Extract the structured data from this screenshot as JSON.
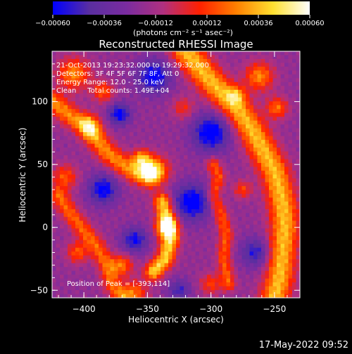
{
  "chart_data": {
    "type": "heatmap",
    "title": "Reconstructed RHESSI Image",
    "xlabel": "Heliocentric X (arcsec)",
    "ylabel": "Heliocentric Y (arcsec)",
    "xlim": [
      -425,
      -230
    ],
    "ylim": [
      -56,
      140
    ],
    "xticks": [
      {
        "value": -400,
        "label": "−400"
      },
      {
        "value": -350,
        "label": "−350"
      },
      {
        "value": -300,
        "label": "−300"
      },
      {
        "value": -250,
        "label": "−250"
      }
    ],
    "yticks": [
      {
        "value": -50,
        "label": "−50"
      },
      {
        "value": 0,
        "label": "0"
      },
      {
        "value": 50,
        "label": "50"
      },
      {
        "value": 100,
        "label": "100"
      }
    ],
    "colorbar": {
      "range": [
        -0.0006,
        0.0006
      ],
      "ticks": [
        {
          "value": -0.0006,
          "label": "−0.00060"
        },
        {
          "value": -0.00036,
          "label": "−0.00036"
        },
        {
          "value": -0.00012,
          "label": "−0.00012"
        },
        {
          "value": 0.00012,
          "label": "0.00012"
        },
        {
          "value": 0.00036,
          "label": "0.00036"
        },
        {
          "value": 0.0006,
          "label": "0.00060"
        }
      ],
      "unit_label": "(photons cm⁻² s⁻¹ asec⁻²)",
      "colors": [
        "#0000ff",
        "#5a2ea0",
        "#7a2ca0",
        "#b03080",
        "#ff2000",
        "#ff8000",
        "#ffe030",
        "#ffffff"
      ]
    },
    "peak": [
      -393,
      114
    ],
    "ridges": [
      {
        "points": [
          [
            -320,
            140
          ],
          [
            -305,
            122
          ],
          [
            -296,
            112
          ],
          [
            -280,
            95
          ],
          [
            -268,
            78
          ],
          [
            -258,
            60
          ],
          [
            -250,
            45
          ],
          [
            -246,
            30
          ],
          [
            -243,
            15
          ],
          [
            -242,
            0
          ],
          [
            -244,
            -20
          ],
          [
            -246,
            -40
          ],
          [
            -250,
            -56
          ]
        ],
        "amplitude": 0.00055,
        "width": 8
      },
      {
        "points": [
          [
            -425,
            100
          ],
          [
            -410,
            88
          ],
          [
            -400,
            82
          ],
          [
            -390,
            70
          ],
          [
            -382,
            60
          ],
          [
            -370,
            50
          ],
          [
            -360,
            44
          ],
          [
            -350,
            42
          ]
        ],
        "amplitude": 0.00045,
        "width": 6
      },
      {
        "points": [
          [
            -338,
            20
          ],
          [
            -334,
            5
          ],
          [
            -332,
            -10
          ],
          [
            -336,
            -25
          ],
          [
            -345,
            -35
          ]
        ],
        "amplitude": 0.0006,
        "width": 5
      },
      {
        "points": [
          [
            -420,
            25
          ],
          [
            -410,
            10
          ],
          [
            -402,
            0
          ],
          [
            -390,
            -15
          ],
          [
            -382,
            -30
          ],
          [
            -378,
            -45
          ],
          [
            -370,
            -56
          ]
        ],
        "amplitude": 0.00038,
        "width": 5
      },
      {
        "points": [
          [
            -298,
            50
          ],
          [
            -294,
            40
          ],
          [
            -298,
            25
          ],
          [
            -292,
            10
          ],
          [
            -288,
            -5
          ],
          [
            -290,
            -25
          ],
          [
            -286,
            -45
          ]
        ],
        "amplitude": 0.00035,
        "width": 4
      }
    ],
    "blobs": [
      {
        "center": [
          -345,
          45
        ],
        "sigma": 8,
        "amplitude": 0.0006
      },
      {
        "center": [
          -355,
          55
        ],
        "sigma": 5,
        "amplitude": 0.00045
      },
      {
        "center": [
          -335,
          0
        ],
        "sigma": 6,
        "amplitude": 0.0005
      },
      {
        "center": [
          -408,
          122
        ],
        "sigma": 9,
        "amplitude": 0.00045
      },
      {
        "center": [
          -385,
          108
        ],
        "sigma": 6,
        "amplitude": 0.00035
      },
      {
        "center": [
          -395,
          80
        ],
        "sigma": 6,
        "amplitude": 0.0004
      },
      {
        "center": [
          -262,
          120
        ],
        "sigma": 8,
        "amplitude": 0.00045
      },
      {
        "center": [
          -248,
          95
        ],
        "sigma": 6,
        "amplitude": 0.0004
      },
      {
        "center": [
          -280,
          105
        ],
        "sigma": 5,
        "amplitude": 0.0003
      },
      {
        "center": [
          -415,
          40
        ],
        "sigma": 7,
        "amplitude": 0.00035
      },
      {
        "center": [
          -405,
          -20
        ],
        "sigma": 6,
        "amplitude": 0.00035
      },
      {
        "center": [
          -370,
          -30
        ],
        "sigma": 6,
        "amplitude": 0.0004
      },
      {
        "center": [
          -360,
          -52
        ],
        "sigma": 7,
        "amplitude": 0.00038
      },
      {
        "center": [
          -300,
          -45
        ],
        "sigma": 6,
        "amplitude": 0.0003
      },
      {
        "center": [
          -275,
          30
        ],
        "sigma": 5,
        "amplitude": 0.0003
      },
      {
        "center": [
          -322,
          95
        ],
        "sigma": 6,
        "amplitude": 0.00025
      },
      {
        "center": [
          -372,
          90
        ],
        "sigma": 6,
        "amplitude": -0.00045
      },
      {
        "center": [
          -345,
          120
        ],
        "sigma": 9,
        "amplitude": -0.00045
      },
      {
        "center": [
          -300,
          75
        ],
        "sigma": 10,
        "amplitude": -0.0005
      },
      {
        "center": [
          -315,
          20
        ],
        "sigma": 10,
        "amplitude": -0.0005
      },
      {
        "center": [
          -385,
          30
        ],
        "sigma": 8,
        "amplitude": -0.00045
      },
      {
        "center": [
          -360,
          -10
        ],
        "sigma": 7,
        "amplitude": -0.0004
      },
      {
        "center": [
          -265,
          -20
        ],
        "sigma": 8,
        "amplitude": -0.00035
      },
      {
        "center": [
          -325,
          -50
        ],
        "sigma": 6,
        "amplitude": -0.0003
      }
    ],
    "background": -0.00018,
    "annotations": {
      "time_range": "21-Oct-2013 19:23:32.000 to 19:29:32.000",
      "detectors": "Detectors: 3F 4F 5F 6F 7F 8F, Att 0",
      "energy": "Energy Range: 12.0 - 25.0 keV",
      "clean": "Clean     Total counts: 1.49E+04",
      "peak_label": "Position of Peak = [-393,114]"
    }
  },
  "footer": {
    "timestamp": "17-May-2022 09:52"
  }
}
